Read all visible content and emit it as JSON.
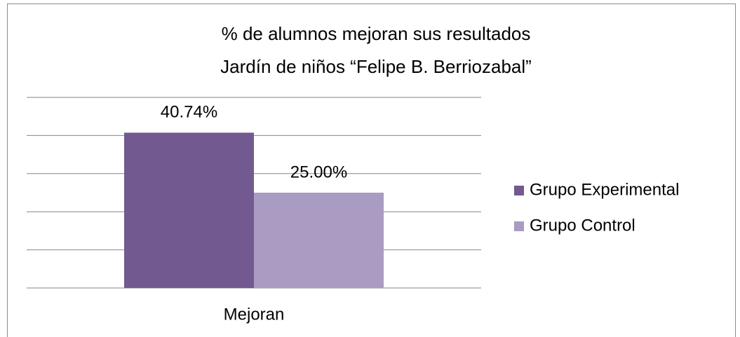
{
  "chart_data": {
    "type": "bar",
    "title": "% de alumnos mejoran sus resultados",
    "subtitle": "Jardín de niños “Felipe B. Berriozabal”",
    "categories": [
      "Mejoran"
    ],
    "series": [
      {
        "name": "Grupo Experimental",
        "color": "#725990",
        "values": [
          40.74
        ],
        "value_labels": [
          "40.74%"
        ]
      },
      {
        "name": "Grupo Control",
        "color": "#a99bc1",
        "values": [
          25
        ],
        "value_labels": [
          "25.00%"
        ]
      }
    ],
    "ylim": [
      0,
      50
    ],
    "yticks": [
      0,
      10,
      20,
      30,
      40,
      50
    ],
    "grid": true,
    "legend": "right"
  }
}
